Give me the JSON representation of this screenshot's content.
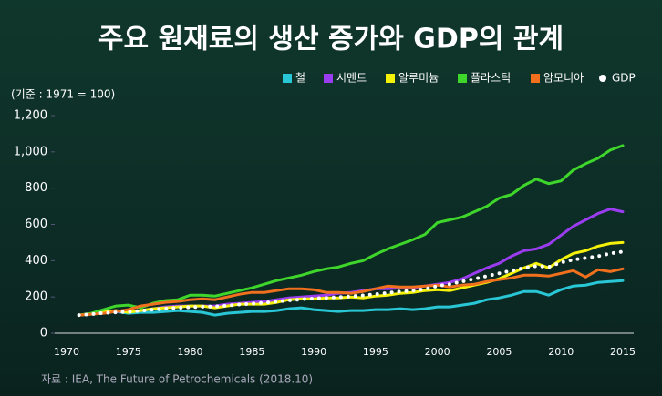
{
  "chart_data": {
    "type": "line",
    "title": "주요 원재료의 생산 증가와 GDP의 관계",
    "y_label": "(기준 : 1971 = 100)",
    "source": "자료 : IEA, The Future of Petrochemicals (2018.10)",
    "x": [
      1971,
      1972,
      1973,
      1974,
      1975,
      1976,
      1977,
      1978,
      1979,
      1980,
      1981,
      1982,
      1983,
      1984,
      1985,
      1986,
      1987,
      1988,
      1989,
      1990,
      1991,
      1992,
      1993,
      1994,
      1995,
      1996,
      1997,
      1998,
      1999,
      2000,
      2001,
      2002,
      2003,
      2004,
      2005,
      2006,
      2007,
      2008,
      2009,
      2010,
      2011,
      2012,
      2013,
      2014,
      2015
    ],
    "series": [
      {
        "name": "철",
        "color": "#29c7d6",
        "values": [
          100,
          105,
          115,
          120,
          110,
          115,
          115,
          120,
          125,
          120,
          115,
          100,
          110,
          115,
          120,
          120,
          125,
          135,
          140,
          130,
          125,
          120,
          125,
          125,
          130,
          130,
          135,
          130,
          135,
          145,
          145,
          155,
          165,
          185,
          195,
          210,
          230,
          230,
          210,
          240,
          260,
          265,
          280,
          285,
          290
        ]
      },
      {
        "name": "시멘트",
        "color": "#9a3cf0",
        "values": [
          100,
          108,
          118,
          120,
          118,
          125,
          135,
          145,
          150,
          150,
          150,
          150,
          160,
          165,
          170,
          175,
          185,
          195,
          200,
          205,
          210,
          220,
          225,
          235,
          245,
          245,
          250,
          250,
          260,
          270,
          280,
          300,
          330,
          360,
          385,
          425,
          455,
          465,
          490,
          540,
          590,
          625,
          660,
          685,
          670
        ]
      },
      {
        "name": "알루미늄",
        "color": "#f5f20a",
        "values": [
          100,
          108,
          118,
          125,
          115,
          125,
          135,
          140,
          145,
          150,
          150,
          140,
          150,
          160,
          160,
          160,
          170,
          185,
          190,
          190,
          195,
          195,
          200,
          195,
          205,
          210,
          220,
          225,
          235,
          240,
          235,
          250,
          265,
          280,
          300,
          330,
          360,
          385,
          360,
          405,
          440,
          455,
          480,
          495,
          500
        ]
      },
      {
        "name": "플라스틱",
        "color": "#3fd62c",
        "values": [
          100,
          110,
          130,
          150,
          155,
          140,
          165,
          180,
          185,
          210,
          210,
          205,
          220,
          235,
          250,
          270,
          290,
          305,
          320,
          340,
          355,
          365,
          385,
          400,
          435,
          465,
          490,
          515,
          545,
          610,
          625,
          640,
          670,
          700,
          745,
          765,
          815,
          850,
          825,
          840,
          900,
          935,
          965,
          1010,
          1035
        ]
      },
      {
        "name": "암모니아",
        "color": "#f0701e",
        "values": [
          100,
          105,
          110,
          120,
          130,
          150,
          160,
          170,
          175,
          185,
          190,
          185,
          200,
          215,
          225,
          225,
          235,
          245,
          245,
          240,
          225,
          225,
          220,
          230,
          245,
          260,
          255,
          255,
          260,
          265,
          255,
          265,
          270,
          285,
          295,
          305,
          320,
          320,
          315,
          330,
          345,
          310,
          350,
          340,
          355
        ]
      },
      {
        "name": "GDP",
        "color": "#ffffff",
        "values": [
          100,
          105,
          112,
          115,
          118,
          124,
          130,
          135,
          140,
          143,
          146,
          147,
          152,
          158,
          163,
          168,
          174,
          181,
          187,
          192,
          195,
          199,
          203,
          209,
          215,
          222,
          230,
          235,
          243,
          260,
          270,
          285,
          300,
          315,
          330,
          345,
          360,
          370,
          365,
          390,
          405,
          415,
          425,
          440,
          450
        ]
      }
    ],
    "xlim": [
      1970,
      2015
    ],
    "xticks": [
      1970,
      1975,
      1980,
      1985,
      1990,
      1995,
      2000,
      2005,
      2010,
      2015
    ],
    "ylim": [
      0,
      1200
    ],
    "yticks": [
      0,
      200,
      400,
      600,
      800,
      {
        "value": 1000,
        "label": "1,000"
      },
      {
        "value": 1200,
        "label": "1,200"
      }
    ],
    "grid": false
  }
}
